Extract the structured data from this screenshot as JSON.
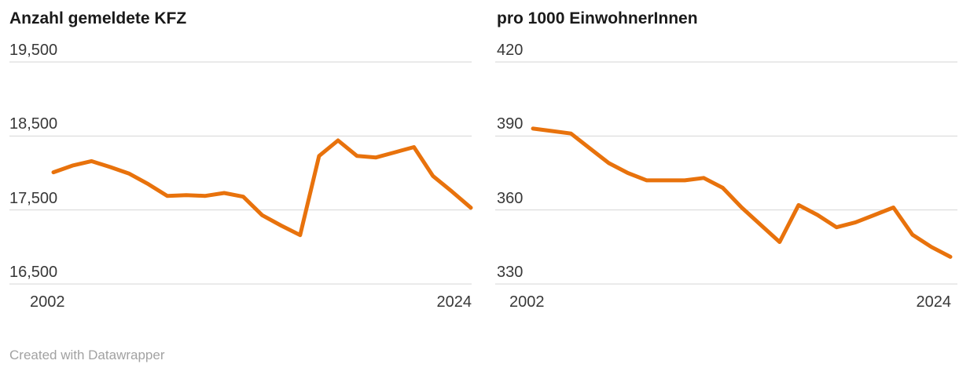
{
  "charts": [
    {
      "title": "Anzahl gemeldete KFZ",
      "y_ticks": [
        "19,500",
        "18,500",
        "17,500",
        "16,500"
      ],
      "x_ticks": [
        "2002",
        "2024"
      ]
    },
    {
      "title": "pro 1000 EinwohnerInnen",
      "y_ticks": [
        "420",
        "390",
        "360",
        "330"
      ],
      "x_ticks": [
        "2002",
        "2024"
      ]
    }
  ],
  "chart_data": [
    {
      "type": "line",
      "title": "Anzahl gemeldete KFZ",
      "xlabel": "",
      "ylabel": "",
      "x": [
        2002,
        2003,
        2004,
        2005,
        2006,
        2007,
        2008,
        2009,
        2010,
        2011,
        2012,
        2013,
        2014,
        2015,
        2016,
        2017,
        2018,
        2019,
        2020,
        2021,
        2022,
        2023,
        2024
      ],
      "values": [
        18010,
        18100,
        18160,
        18080,
        17990,
        17850,
        17690,
        17700,
        17690,
        17730,
        17680,
        17430,
        17290,
        17160,
        18230,
        18440,
        18230,
        18210,
        18280,
        18350,
        17960,
        17750,
        17530
      ],
      "y_axis_ticks": [
        19500,
        18500,
        17500,
        16500
      ],
      "ylim": [
        16500,
        19500
      ],
      "xlim": [
        2002,
        2024
      ],
      "grid": "horizontal",
      "legend": "none",
      "line_color": "#e8720c"
    },
    {
      "type": "line",
      "title": "pro 1000 EinwohnerInnen",
      "xlabel": "",
      "ylabel": "",
      "x": [
        2002,
        2003,
        2004,
        2005,
        2006,
        2007,
        2008,
        2009,
        2010,
        2011,
        2012,
        2013,
        2014,
        2015,
        2016,
        2017,
        2018,
        2019,
        2020,
        2021,
        2022,
        2023,
        2024
      ],
      "values": [
        393,
        392,
        391,
        385,
        379,
        375,
        372,
        372,
        372,
        373,
        369,
        361,
        354,
        347,
        362,
        358,
        353,
        355,
        358,
        361,
        350,
        345,
        341
      ],
      "y_axis_ticks": [
        420,
        390,
        360,
        330
      ],
      "ylim": [
        330,
        420
      ],
      "xlim": [
        2002,
        2024
      ],
      "grid": "horizontal",
      "legend": "none",
      "line_color": "#e8720c"
    }
  ],
  "footer": {
    "attribution": "Created with Datawrapper"
  },
  "theme": {
    "accent": "#e8720c",
    "grid_color": "#d6d6d6",
    "title_color": "#1a1a1a",
    "tick_color": "#383838",
    "muted_color": "#a2a2a2",
    "background": "#ffffff"
  }
}
